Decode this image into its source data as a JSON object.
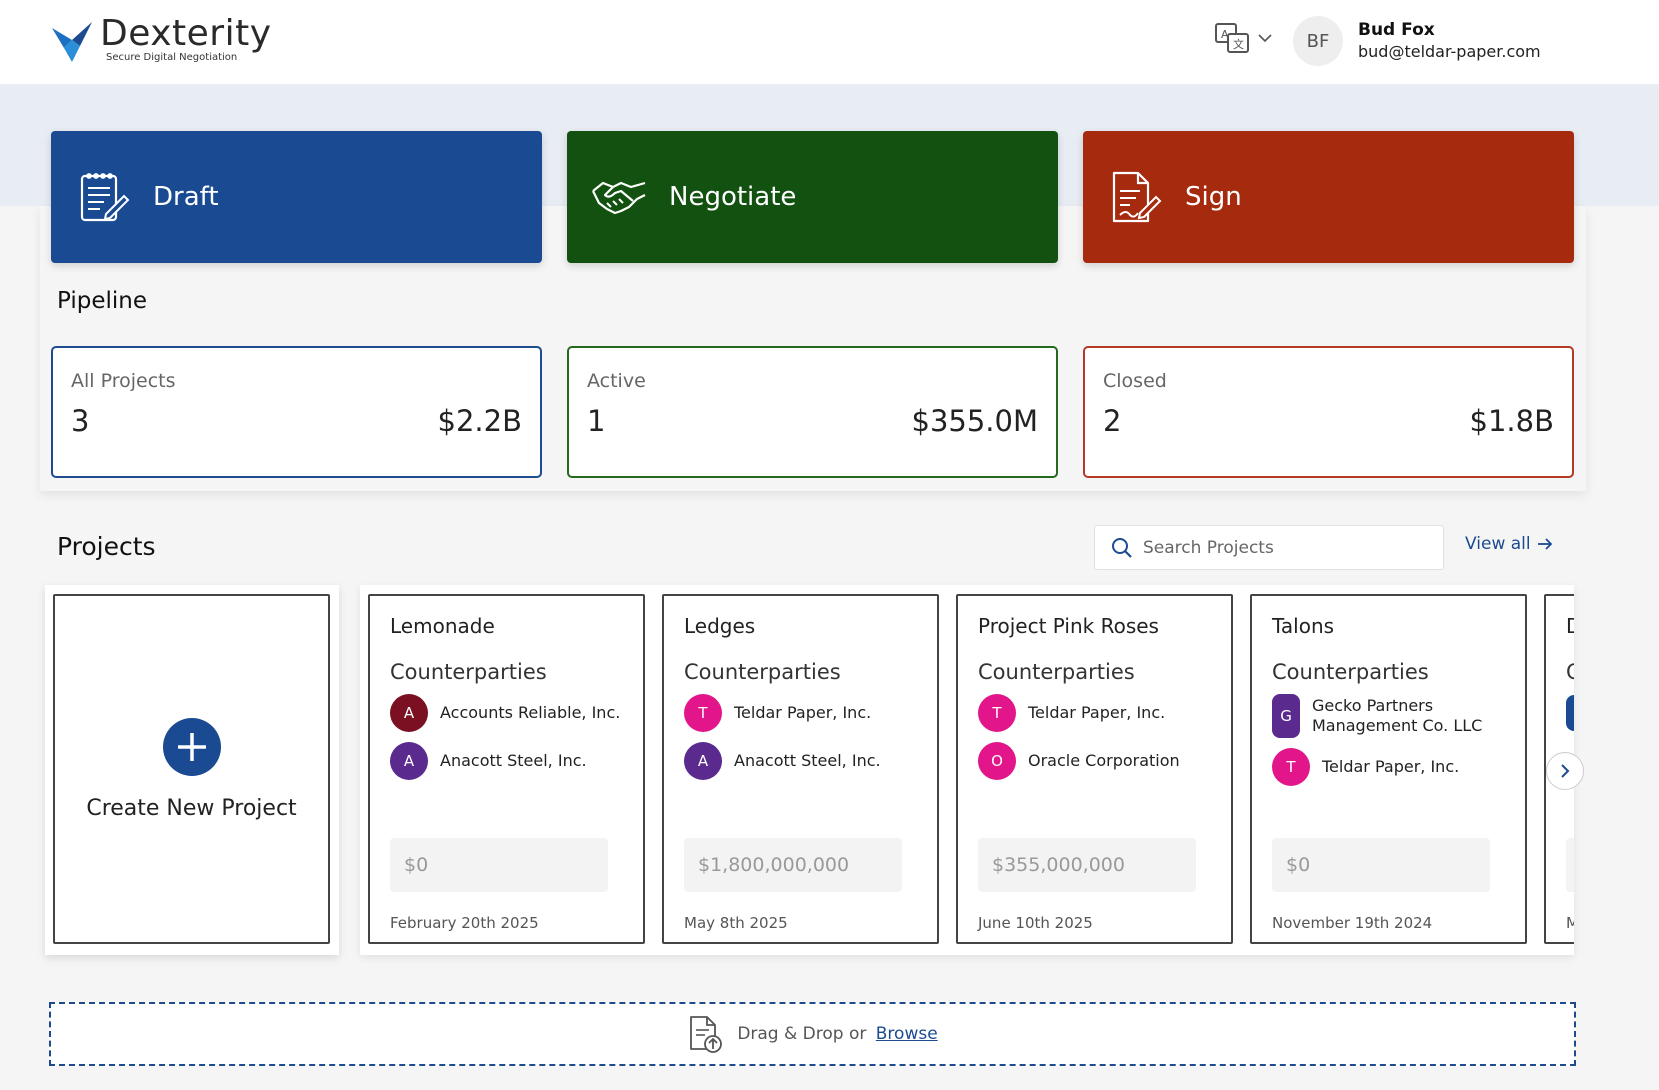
{
  "brand": {
    "name": "Dexterity",
    "tagline": "Secure Digital Negotiation"
  },
  "user": {
    "initials": "BF",
    "name": "Bud Fox",
    "email": "bud@teldar-paper.com"
  },
  "actions": [
    {
      "label": "Draft",
      "color": "#194a92"
    },
    {
      "label": "Negotiate",
      "color": "#12510f"
    },
    {
      "label": "Sign",
      "color": "#a62a0e"
    }
  ],
  "pipeline": {
    "title": "Pipeline",
    "stats": [
      {
        "label": "All Projects",
        "count": "3",
        "amount": "$2.2B"
      },
      {
        "label": "Active",
        "count": "1",
        "amount": "$355.0M"
      },
      {
        "label": "Closed",
        "count": "2",
        "amount": "$1.8B"
      }
    ]
  },
  "projects": {
    "title": "Projects",
    "search_placeholder": "Search Projects",
    "view_all": "View all",
    "create_label": "Create New Project",
    "counterparties_label": "Counterparties",
    "cards": [
      {
        "title": "Lemonade",
        "counterparties": [
          {
            "initial": "A",
            "name": "Accounts Reliable, Inc.",
            "color": "#7a1021"
          },
          {
            "initial": "A",
            "name": "Anacott Steel, Inc.",
            "color": "#5b2a8e"
          }
        ],
        "value": "$0",
        "date": "February 20th 2025"
      },
      {
        "title": "Ledges",
        "counterparties": [
          {
            "initial": "T",
            "name": "Teldar Paper, Inc.",
            "color": "#e2158a"
          },
          {
            "initial": "A",
            "name": "Anacott Steel, Inc.",
            "color": "#5b2a8e"
          }
        ],
        "value": "$1,800,000,000",
        "date": "May 8th 2025"
      },
      {
        "title": "Project Pink Roses",
        "counterparties": [
          {
            "initial": "T",
            "name": "Teldar Paper, Inc.",
            "color": "#e2158a"
          },
          {
            "initial": "O",
            "name": "Oracle Corporation",
            "color": "#e2158a"
          }
        ],
        "value": "$355,000,000",
        "date": "June 10th 2025"
      },
      {
        "title": "Talons",
        "counterparties": [
          {
            "initial": "G",
            "name": "Gecko Partners Management Co. LLC",
            "color": "#5b2a8e"
          },
          {
            "initial": "T",
            "name": "Teldar Paper, Inc.",
            "color": "#e2158a"
          }
        ],
        "value": "$0",
        "date": "November 19th 2024"
      },
      {
        "title": "D",
        "counterparties": [
          {
            "initial": "",
            "name": "",
            "color": "#194a92"
          }
        ],
        "value": "",
        "date": "M"
      }
    ]
  },
  "dropzone": {
    "text": "Drag & Drop or",
    "link": "Browse"
  }
}
